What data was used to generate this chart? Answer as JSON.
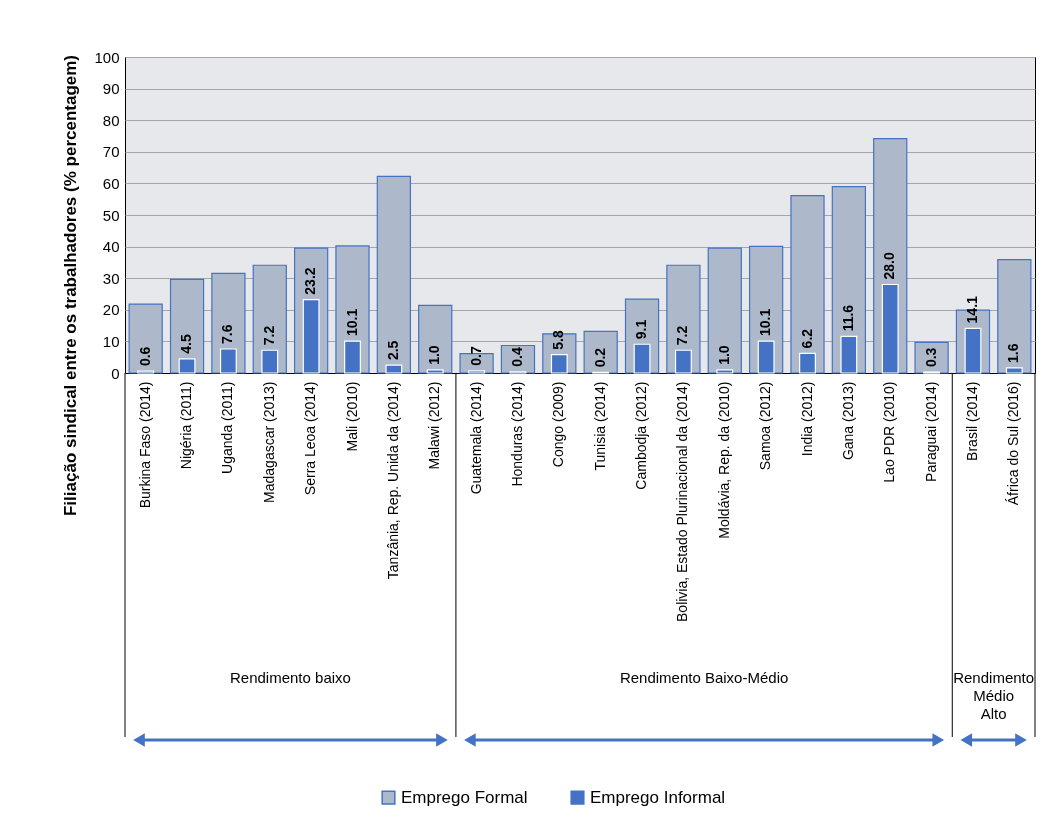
{
  "chart_data": {
    "type": "bar",
    "ylabel": "Filiação sindical entre os trabalhadores (% percentagem)",
    "categories": [
      "Burkina Faso (2014)",
      "Nigéria (2011)",
      "Uganda (2011)",
      "Madagascar (2013)",
      "Serra Leoa (2014)",
      "Mali (2010)",
      "Tanzânia, Rep. Unida da (2014)",
      "Malawi (2012)",
      "Guatemala (2014)",
      "Honduras (2014)",
      "Congo (2009)",
      "Tunisia (2014)",
      "Cambodja (2012)",
      "Bolivia, Estado Plurinacional da (2014)",
      "Moldávia, Rep. da (2010)",
      "Samoa (2012)",
      "India (2012)",
      "Gana (2013)",
      "Lao PDR (2010)",
      "Paraguai (2014)",
      "Brasil (2014)",
      "África do Sul (2016)"
    ],
    "series": [
      {
        "name": "Emprego Formal",
        "color": "#adb9ca",
        "values": [
          21.8,
          29.6,
          31.5,
          34.1,
          39.5,
          40.2,
          62.2,
          21.4,
          6.1,
          8.7,
          12.4,
          13.2,
          23.4,
          34.1,
          39.5,
          40.1,
          56.1,
          59.0,
          74.2,
          9.7,
          19.9,
          35.9
        ]
      },
      {
        "name": "Emprego Informal",
        "color": "#4472c4",
        "values": [
          0.6,
          4.5,
          7.6,
          7.2,
          23.2,
          10.1,
          2.5,
          1.0,
          0.7,
          0.4,
          5.8,
          0.2,
          9.1,
          7.2,
          1.0,
          10.1,
          6.2,
          11.6,
          28.0,
          0.3,
          14.1,
          1.6
        ],
        "value_labels": [
          "0.6",
          "4.5",
          "7.6",
          "7.2",
          "23.2",
          "10.1",
          "2.5",
          "1.0",
          "0.7",
          "0.4",
          "5.8",
          "0.2",
          "9.1",
          "7.2",
          "1.0",
          "10.1",
          "6.2",
          "11.6",
          "28.0",
          "0.3",
          "14.1",
          "1.6"
        ]
      }
    ],
    "ylim": [
      0,
      100
    ],
    "yticks": [
      0,
      10,
      20,
      30,
      40,
      50,
      60,
      70,
      80,
      90,
      100
    ],
    "grid": "y",
    "legend": "bottom",
    "annotations": [
      "Rendimento baixo",
      "Rendimento Baixo-Médio",
      "Rendimento Médio Alto"
    ]
  }
}
